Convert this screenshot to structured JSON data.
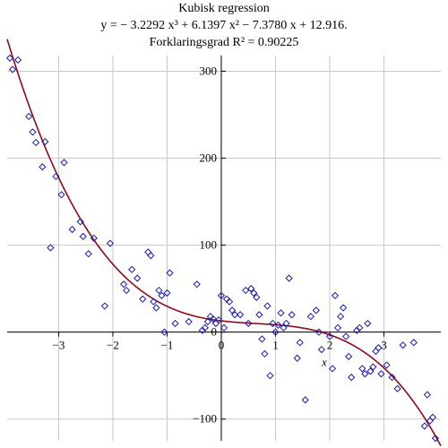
{
  "title_lines": [
    "Kubisk regression",
    "y = − 3.2292 x³ + 6.1397 x² − 7.3780 x + 12.916.",
    "Forklaringsgrad R² = 0.90225"
  ],
  "chart_data": {
    "type": "scatter",
    "title": "Kubisk regression",
    "xlabel": "x",
    "ylabel": "",
    "xlim": [
      -3.95,
      4.05
    ],
    "ylim": [
      -125,
      318
    ],
    "xticks": [
      -3,
      -2,
      -1,
      0,
      1,
      2,
      3
    ],
    "yticks": [
      -100,
      0,
      100,
      200,
      300
    ],
    "grid": true,
    "colors": {
      "points": "#1a1aaa",
      "curve": "#8b0a1e",
      "grid": "#c8c8c8",
      "axes": "#000000"
    },
    "regression": {
      "type": "cubic",
      "coefficients": [
        -3.2292,
        6.1397,
        -7.378,
        12.916
      ],
      "r2": 0.90225
    },
    "points": [
      [
        -3.9,
        315
      ],
      [
        -3.85,
        302
      ],
      [
        -3.75,
        313
      ],
      [
        -3.55,
        248
      ],
      [
        -3.48,
        230
      ],
      [
        -3.42,
        218
      ],
      [
        -3.3,
        190
      ],
      [
        -3.25,
        219
      ],
      [
        -3.15,
        97
      ],
      [
        -3.05,
        179
      ],
      [
        -2.95,
        158
      ],
      [
        -2.9,
        195
      ],
      [
        -2.75,
        118
      ],
      [
        -2.6,
        127
      ],
      [
        -2.55,
        110
      ],
      [
        -2.45,
        90
      ],
      [
        -2.35,
        108
      ],
      [
        -2.15,
        30
      ],
      [
        -2.05,
        102
      ],
      [
        -1.8,
        55
      ],
      [
        -1.75,
        48
      ],
      [
        -1.65,
        72
      ],
      [
        -1.55,
        62
      ],
      [
        -1.45,
        38
      ],
      [
        -1.35,
        92
      ],
      [
        -1.3,
        88
      ],
      [
        -1.25,
        35
      ],
      [
        -1.2,
        28
      ],
      [
        -1.15,
        48
      ],
      [
        -1.1,
        42
      ],
      [
        -1.05,
        0
      ],
      [
        -1.0,
        45
      ],
      [
        -0.95,
        68
      ],
      [
        -0.85,
        10
      ],
      [
        -0.6,
        12
      ],
      [
        -0.45,
        55
      ],
      [
        -0.35,
        2
      ],
      [
        -0.3,
        5
      ],
      [
        -0.25,
        12
      ],
      [
        -0.2,
        18
      ],
      [
        -0.15,
        15
      ],
      [
        -0.1,
        10
      ],
      [
        -0.05,
        14
      ],
      [
        0.0,
        42
      ],
      [
        0.05,
        5
      ],
      [
        0.1,
        38
      ],
      [
        0.15,
        35
      ],
      [
        0.2,
        25
      ],
      [
        0.25,
        20
      ],
      [
        0.35,
        20
      ],
      [
        0.45,
        48
      ],
      [
        0.5,
        10
      ],
      [
        0.55,
        50
      ],
      [
        0.6,
        45
      ],
      [
        0.65,
        40
      ],
      [
        0.7,
        20
      ],
      [
        0.75,
        -8
      ],
      [
        0.8,
        -25
      ],
      [
        0.85,
        30
      ],
      [
        0.9,
        -50
      ],
      [
        0.95,
        10
      ],
      [
        1.0,
        0
      ],
      [
        1.05,
        8
      ],
      [
        1.1,
        22
      ],
      [
        1.15,
        5
      ],
      [
        1.2,
        10
      ],
      [
        1.25,
        62
      ],
      [
        1.3,
        20
      ],
      [
        1.4,
        -30
      ],
      [
        1.45,
        -12
      ],
      [
        1.55,
        -78
      ],
      [
        1.65,
        18
      ],
      [
        1.75,
        25
      ],
      [
        1.8,
        0
      ],
      [
        1.85,
        -20
      ],
      [
        2.0,
        -5
      ],
      [
        2.05,
        -42
      ],
      [
        2.1,
        42
      ],
      [
        2.15,
        5
      ],
      [
        2.2,
        18
      ],
      [
        2.25,
        28
      ],
      [
        2.3,
        -5
      ],
      [
        2.35,
        -28
      ],
      [
        2.4,
        -52
      ],
      [
        2.5,
        2
      ],
      [
        2.55,
        5
      ],
      [
        2.6,
        -42
      ],
      [
        2.65,
        -48
      ],
      [
        2.7,
        10
      ],
      [
        2.75,
        -45
      ],
      [
        2.8,
        -40
      ],
      [
        2.85,
        -22
      ],
      [
        2.9,
        -18
      ],
      [
        2.95,
        -48
      ],
      [
        3.05,
        -38
      ],
      [
        3.15,
        -52
      ],
      [
        3.25,
        -65
      ],
      [
        3.35,
        -15
      ],
      [
        3.55,
        -12
      ],
      [
        3.75,
        -108
      ],
      [
        3.8,
        -72
      ],
      [
        3.85,
        -102
      ],
      [
        3.9,
        -98
      ],
      [
        3.95,
        -122
      ]
    ]
  }
}
